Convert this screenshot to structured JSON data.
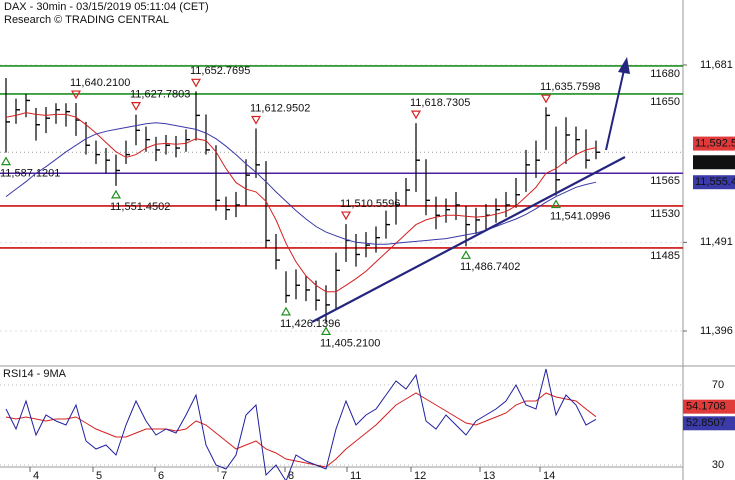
{
  "chart_data": [
    {
      "type": "ohlc",
      "title": "DAX - 30min - 03/15/2019 05:11:04 (CET)",
      "subtitle": "Research © TRADING CENTRAL",
      "xlim": [
        -0.6,
        67.7
      ],
      "ylim": [
        11359.6,
        11750.6
      ],
      "yticks": [
        {
          "value": 11681,
          "label": "11,681"
        },
        {
          "value": 11491,
          "label": "11,491"
        },
        {
          "value": 11396,
          "label": "11,396"
        }
      ],
      "series": [
        {
          "type": "ohlc",
          "color": "#000000",
          "last_label": "11,587.5",
          "high": [
            11667,
            11645,
            11650,
            11635,
            11636,
            11640,
            11640,
            11640.21,
            11620,
            11600,
            11592,
            11585,
            11600,
            11627.7803,
            11615,
            11604,
            11606,
            11605,
            11612,
            11652.7695,
            11628,
            11595,
            11540,
            11545,
            11580,
            11612.9502,
            11578,
            11500,
            11460,
            11462,
            11455,
            11450,
            11445,
            11480,
            11510.5596,
            11500,
            11502,
            11508,
            11525,
            11545,
            11560,
            11618.7305,
            11580,
            11540,
            11538,
            11545,
            11530,
            11528,
            11532,
            11538,
            11545,
            11560,
            11590,
            11600,
            11635.7598,
            11615,
            11625,
            11615,
            11612,
            11600
          ],
          "low": [
            11587.1201,
            11618,
            11625,
            11600,
            11608,
            11618,
            11615,
            11605,
            11585,
            11575,
            11565,
            11551.4502,
            11575,
            11595,
            11588,
            11578,
            11585,
            11582,
            11588,
            11600,
            11585,
            11525,
            11515,
            11518,
            11530,
            11560,
            11485,
            11462,
            11426.1396,
            11430,
            11428,
            11418,
            11405.21,
            11420,
            11470,
            11465,
            11475,
            11480,
            11495,
            11510,
            11530,
            11545,
            11520,
            11505,
            11512,
            11515,
            11486.7402,
            11500,
            11505,
            11512,
            11518,
            11528,
            11545,
            11560,
            11590,
            11541.0996,
            11575,
            11585,
            11570,
            11580
          ],
          "values": [
            11620,
            11633,
            11643,
            11617,
            11624,
            11633,
            11631,
            11622,
            11595,
            11585,
            11579,
            11568,
            11585,
            11611,
            11601,
            11590,
            11595,
            11592,
            11601,
            11627,
            11590,
            11536,
            11526,
            11531,
            11563,
            11574,
            11493,
            11472,
            11434,
            11445,
            11440,
            11429,
            11424,
            11461,
            11493,
            11478,
            11488,
            11496,
            11510,
            11531,
            11547,
            11579,
            11536,
            11520,
            11526,
            11531,
            11510,
            11515,
            11520,
            11526,
            11531,
            11542,
            11574,
            11579,
            11627,
            11558,
            11606,
            11601,
            11579,
            11587.5
          ]
        },
        {
          "type": "line",
          "color": "#d42020",
          "last_label": "11,592.5",
          "values": [
            11625,
            11627,
            11630,
            11628,
            11627,
            11628,
            11628,
            11625,
            11617,
            11608,
            11598,
            11588,
            11582,
            11585,
            11592,
            11596,
            11597,
            11596,
            11597,
            11602,
            11600,
            11588,
            11570,
            11555,
            11548,
            11545,
            11535,
            11515,
            11490,
            11470,
            11455,
            11445,
            11438,
            11438,
            11445,
            11452,
            11460,
            11470,
            11480,
            11490,
            11500,
            11510,
            11515,
            11518,
            11520,
            11520,
            11519,
            11518,
            11519,
            11521,
            11524,
            11530,
            11540,
            11550,
            11565,
            11570,
            11578,
            11585,
            11590,
            11592.5
          ]
        },
        {
          "type": "line",
          "color": "#3a3aa8",
          "last_label": "11,555.4",
          "values": [
            11540,
            11548,
            11556,
            11565,
            11572,
            11580,
            11588,
            11595,
            11602,
            11607,
            11610,
            11612,
            11614,
            11616,
            11618,
            11619,
            11618,
            11616,
            11614,
            11612,
            11608,
            11602,
            11594,
            11585,
            11575,
            11566,
            11556,
            11545,
            11535,
            11525,
            11516,
            11508,
            11502,
            11498,
            11494,
            11491,
            11490,
            11489,
            11489,
            11490,
            11491,
            11492,
            11493,
            11494,
            11495,
            11497,
            11499,
            11501,
            11504,
            11508,
            11512,
            11516,
            11521,
            11527,
            11534,
            11540,
            11545,
            11550,
            11553,
            11555.4
          ]
        }
      ],
      "levels": [
        {
          "value": 11680,
          "color": "#1f8f1f"
        },
        {
          "value": 11650,
          "color": "#1f8f1f"
        },
        {
          "value": 11565,
          "color": "#4b1fa0"
        },
        {
          "value": 11530,
          "color": "#cc1010"
        },
        {
          "value": 11485,
          "color": "#cc1010"
        }
      ],
      "annotations": [
        {
          "kind": "high",
          "bar": 7,
          "value": 11640.21,
          "label": "11,640.2100"
        },
        {
          "kind": "high",
          "bar": 13,
          "value": 11627.7803,
          "label": "11,627.7803"
        },
        {
          "kind": "high",
          "bar": 19,
          "value": 11652.7695,
          "label": "11,652.7695"
        },
        {
          "kind": "high",
          "bar": 25,
          "value": 11612.9502,
          "label": "11,612.9502"
        },
        {
          "kind": "high",
          "bar": 34,
          "value": 11510.5596,
          "label": "11,510.5596"
        },
        {
          "kind": "high",
          "bar": 41,
          "value": 11618.7305,
          "label": "11,618.7305"
        },
        {
          "kind": "high",
          "bar": 54,
          "value": 11635.7598,
          "label": "11,635.7598"
        },
        {
          "kind": "low",
          "bar": 0,
          "value": 11587.1201,
          "label": "11,587.1201"
        },
        {
          "kind": "low",
          "bar": 11,
          "value": 11551.4502,
          "label": "11,551.4502"
        },
        {
          "kind": "low",
          "bar": 28,
          "value": 11426.1396,
          "label": "11,426.1396"
        },
        {
          "kind": "low",
          "bar": 32,
          "value": 11405.21,
          "label": "11,405.2100"
        },
        {
          "kind": "low",
          "bar": 46,
          "value": 11486.7402,
          "label": "11,486.7402"
        },
        {
          "kind": "low",
          "bar": 55,
          "value": 11541.0996,
          "label": "11,541.0996"
        }
      ]
    },
    {
      "type": "line",
      "title": "RSI14 - 9MA",
      "xlim": [
        -0.6,
        67.7
      ],
      "xticks": [
        {
          "value": 2.4,
          "label": "4"
        },
        {
          "value": 8.7,
          "label": "5"
        },
        {
          "value": 14.9,
          "label": "6"
        },
        {
          "value": 21.2,
          "label": "7"
        },
        {
          "value": 27.9,
          "label": "8"
        },
        {
          "value": 34.1,
          "label": "11"
        },
        {
          "value": 40.5,
          "label": "12"
        },
        {
          "value": 47.4,
          "label": "13"
        },
        {
          "value": 53.4,
          "label": "14"
        }
      ],
      "ylim": [
        24,
        79.5
      ],
      "yticks": [
        70,
        30
      ],
      "series": [
        {
          "color": "#d42020",
          "values": [
            54,
            53,
            54,
            53,
            52,
            53,
            53,
            54,
            51,
            48,
            46,
            44,
            44,
            46,
            48,
            48,
            48,
            47,
            48,
            52,
            50,
            46,
            42,
            38,
            40,
            42,
            38,
            36,
            33,
            32,
            31,
            30,
            29,
            33,
            38,
            42,
            46,
            50,
            55,
            60,
            63,
            66,
            63,
            60,
            57,
            54,
            51,
            50,
            52,
            54,
            56,
            60,
            62,
            62,
            66,
            64,
            63,
            62,
            58,
            54.1708
          ]
        },
        {
          "color": "#2020a0",
          "values": [
            58,
            48,
            62,
            45,
            55,
            52,
            50,
            60,
            42,
            38,
            40,
            35,
            50,
            62,
            52,
            45,
            48,
            46,
            55,
            65,
            40,
            30,
            28,
            35,
            55,
            60,
            25,
            30,
            22,
            35,
            32,
            30,
            28,
            48,
            62,
            50,
            55,
            58,
            65,
            72,
            68,
            75,
            52,
            48,
            55,
            50,
            45,
            52,
            55,
            58,
            62,
            70,
            60,
            58,
            78,
            55,
            65,
            60,
            50,
            52.8507
          ]
        }
      ]
    }
  ]
}
